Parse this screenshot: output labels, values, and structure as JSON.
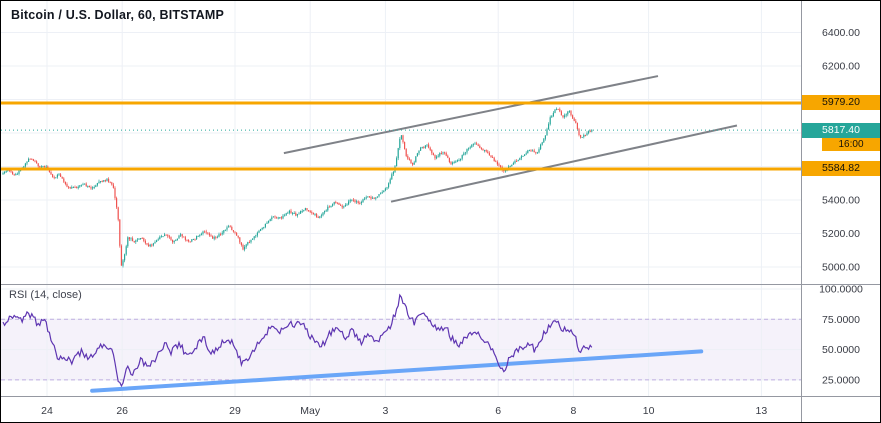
{
  "header": {
    "symbol_title": "Bitcoin / U.S. Dollar, 60, BITSTAMP"
  },
  "price_labels": {
    "level_upper": "5979.20",
    "level_lower": "5584.82",
    "last_price": "5817.40",
    "countdown": "16:00"
  },
  "price_axis": {
    "ticks": [
      "6400.00",
      "6200.00",
      "6000.00",
      "5800.00",
      "5600.00",
      "5400.00",
      "5200.00",
      "5000.00"
    ],
    "tick_values": [
      6400,
      6200,
      6000,
      5800,
      5600,
      5400,
      5200,
      5000
    ]
  },
  "rsi_panel": {
    "label": "RSI (14, close)",
    "ticks": [
      "100.0000",
      "75.0000",
      "50.0000",
      "25.0000"
    ],
    "tick_values": [
      100,
      75,
      50,
      25
    ]
  },
  "time_axis": {
    "ticks": [
      {
        "label": "24",
        "d": 0
      },
      {
        "label": "26",
        "d": 2
      },
      {
        "label": "29",
        "d": 5
      },
      {
        "label": "May",
        "d": 7
      },
      {
        "label": "3",
        "d": 9
      },
      {
        "label": "6",
        "d": 12
      },
      {
        "label": "8",
        "d": 14
      },
      {
        "label": "10",
        "d": 16
      },
      {
        "label": "13",
        "d": 19
      }
    ]
  },
  "colors": {
    "up": "#26a69a",
    "down": "#ef5350",
    "level_orange": "#f7a600",
    "rsi_line": "#5e35b1",
    "rsi_band_fill": "rgba(131,90,197,0.08)",
    "rsi_band_edge": "rgba(131,90,197,0.45)",
    "trend_gray": "#7f8288",
    "trend_blue": "#6aa6f8",
    "grid": "#edf0f6",
    "separator": "#9598a1",
    "axis_text": "#383b44"
  },
  "chart_data": {
    "type": "candlestick",
    "title": "Bitcoin / U.S. Dollar, 60, BITSTAMP",
    "timeframe": "60",
    "exchange": "BITSTAMP",
    "price_axis_ticks": [
      6400,
      6200,
      6000,
      5800,
      5600,
      5400,
      5200,
      5000
    ],
    "time_axis_ticks": [
      "24",
      "26",
      "29",
      "May",
      "3",
      "6",
      "8",
      "10",
      "13"
    ],
    "price_ylim": [
      4950,
      6500
    ],
    "horizontal_levels": [
      5979.2,
      5584.82
    ],
    "last_price": 5817.4,
    "bar_countdown": "16:00",
    "price_path": [
      [
        -1.22,
        5560
      ],
      [
        -1.01,
        5580
      ],
      [
        -0.85,
        5545
      ],
      [
        -0.64,
        5600
      ],
      [
        -0.43,
        5655
      ],
      [
        -0.21,
        5600
      ],
      [
        0,
        5595
      ],
      [
        0.16,
        5530
      ],
      [
        0.32,
        5555
      ],
      [
        0.53,
        5480
      ],
      [
        0.74,
        5470
      ],
      [
        0.96,
        5500
      ],
      [
        1.17,
        5465
      ],
      [
        1.38,
        5510
      ],
      [
        1.6,
        5520
      ],
      [
        1.76,
        5480
      ],
      [
        1.89,
        5300
      ],
      [
        1.97,
        5000
      ],
      [
        2.05,
        5060
      ],
      [
        2.15,
        5180
      ],
      [
        2.31,
        5150
      ],
      [
        2.5,
        5180
      ],
      [
        2.71,
        5120
      ],
      [
        2.93,
        5160
      ],
      [
        3.14,
        5200
      ],
      [
        3.35,
        5150
      ],
      [
        3.56,
        5190
      ],
      [
        3.78,
        5150
      ],
      [
        3.99,
        5180
      ],
      [
        4.2,
        5220
      ],
      [
        4.41,
        5170
      ],
      [
        4.63,
        5200
      ],
      [
        4.84,
        5240
      ],
      [
        5.03,
        5200
      ],
      [
        5.21,
        5110
      ],
      [
        5.37,
        5150
      ],
      [
        5.59,
        5200
      ],
      [
        5.8,
        5250
      ],
      [
        6.01,
        5300
      ],
      [
        6.22,
        5290
      ],
      [
        6.44,
        5330
      ],
      [
        6.65,
        5310
      ],
      [
        6.86,
        5350
      ],
      [
        7.02,
        5330
      ],
      [
        7.23,
        5290
      ],
      [
        7.45,
        5350
      ],
      [
        7.66,
        5390
      ],
      [
        7.87,
        5360
      ],
      [
        8.09,
        5400
      ],
      [
        8.3,
        5380
      ],
      [
        8.51,
        5420
      ],
      [
        8.72,
        5410
      ],
      [
        8.88,
        5440
      ],
      [
        9.04,
        5470
      ],
      [
        9.26,
        5600
      ],
      [
        9.41,
        5795
      ],
      [
        9.57,
        5650
      ],
      [
        9.73,
        5610
      ],
      [
        9.89,
        5700
      ],
      [
        10.11,
        5730
      ],
      [
        10.32,
        5650
      ],
      [
        10.53,
        5690
      ],
      [
        10.74,
        5620
      ],
      [
        10.96,
        5640
      ],
      [
        11.17,
        5700
      ],
      [
        11.38,
        5740
      ],
      [
        11.6,
        5700
      ],
      [
        11.81,
        5660
      ],
      [
        12.0,
        5610
      ],
      [
        12.18,
        5570
      ],
      [
        12.39,
        5620
      ],
      [
        12.61,
        5660
      ],
      [
        12.82,
        5700
      ],
      [
        13.03,
        5680
      ],
      [
        13.24,
        5780
      ],
      [
        13.4,
        5900
      ],
      [
        13.56,
        5950
      ],
      [
        13.72,
        5900
      ],
      [
        13.88,
        5930
      ],
      [
        14.04,
        5870
      ],
      [
        14.18,
        5770
      ],
      [
        14.31,
        5790
      ],
      [
        14.47,
        5817
      ]
    ],
    "trendlines": [
      {
        "name": "channel-upper-line",
        "from": [
          6.3,
          5680
        ],
        "to": [
          16.25,
          6140
        ]
      },
      {
        "name": "channel-lower-line",
        "from": [
          9.15,
          5390
        ],
        "to": [
          18.35,
          5845
        ]
      }
    ],
    "rsi": {
      "band": [
        25,
        75
      ],
      "trendline": {
        "from": [
          1.2,
          16
        ],
        "to": [
          17.4,
          48.5
        ]
      },
      "path": [
        [
          -1.22,
          70
        ],
        [
          -0.96,
          78
        ],
        [
          -0.69,
          74
        ],
        [
          -0.48,
          80
        ],
        [
          -0.27,
          72
        ],
        [
          -0.05,
          74
        ],
        [
          0.11,
          60
        ],
        [
          0.27,
          45
        ],
        [
          0.48,
          42
        ],
        [
          0.69,
          40
        ],
        [
          0.9,
          48
        ],
        [
          1.12,
          42
        ],
        [
          1.33,
          50
        ],
        [
          1.54,
          55
        ],
        [
          1.76,
          48
        ],
        [
          1.89,
          22
        ],
        [
          1.99,
          18
        ],
        [
          2.13,
          35
        ],
        [
          2.29,
          30
        ],
        [
          2.5,
          42
        ],
        [
          2.71,
          35
        ],
        [
          2.93,
          45
        ],
        [
          3.14,
          55
        ],
        [
          3.3,
          48
        ],
        [
          3.51,
          55
        ],
        [
          3.72,
          45
        ],
        [
          3.94,
          52
        ],
        [
          4.15,
          60
        ],
        [
          4.36,
          48
        ],
        [
          4.57,
          52
        ],
        [
          4.79,
          60
        ],
        [
          5.0,
          52
        ],
        [
          5.19,
          38
        ],
        [
          5.37,
          45
        ],
        [
          5.59,
          55
        ],
        [
          5.8,
          62
        ],
        [
          6.01,
          70
        ],
        [
          6.22,
          65
        ],
        [
          6.44,
          72
        ],
        [
          6.6,
          68
        ],
        [
          6.76,
          74
        ],
        [
          6.91,
          65
        ],
        [
          7.07,
          58
        ],
        [
          7.29,
          52
        ],
        [
          7.5,
          62
        ],
        [
          7.71,
          68
        ],
        [
          7.93,
          60
        ],
        [
          8.14,
          66
        ],
        [
          8.35,
          56
        ],
        [
          8.56,
          62
        ],
        [
          8.78,
          58
        ],
        [
          8.94,
          62
        ],
        [
          9.1,
          68
        ],
        [
          9.26,
          80
        ],
        [
          9.41,
          96
        ],
        [
          9.52,
          85
        ],
        [
          9.63,
          78
        ],
        [
          9.79,
          72
        ],
        [
          9.95,
          80
        ],
        [
          10.16,
          75
        ],
        [
          10.37,
          65
        ],
        [
          10.59,
          70
        ],
        [
          10.74,
          60
        ],
        [
          10.96,
          55
        ],
        [
          11.17,
          62
        ],
        [
          11.38,
          65
        ],
        [
          11.6,
          58
        ],
        [
          11.81,
          52
        ],
        [
          12.0,
          38
        ],
        [
          12.15,
          33
        ],
        [
          12.34,
          45
        ],
        [
          12.55,
          50
        ],
        [
          12.77,
          55
        ],
        [
          12.98,
          50
        ],
        [
          13.19,
          62
        ],
        [
          13.4,
          70
        ],
        [
          13.56,
          73
        ],
        [
          13.72,
          65
        ],
        [
          13.88,
          68
        ],
        [
          14.04,
          60
        ],
        [
          14.18,
          48
        ],
        [
          14.31,
          52
        ],
        [
          14.47,
          53
        ]
      ]
    }
  }
}
